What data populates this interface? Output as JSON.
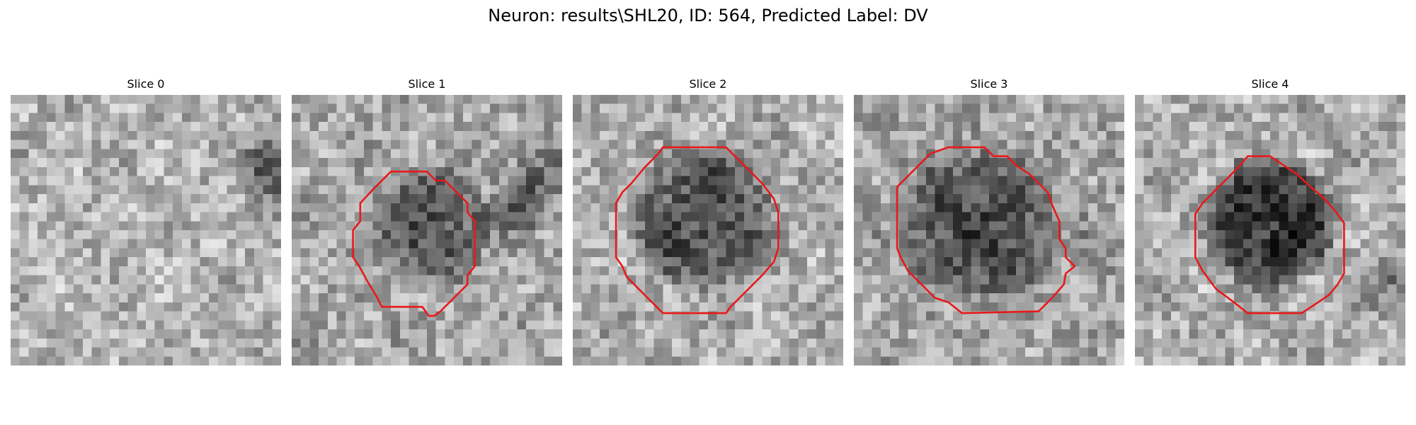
{
  "figure": {
    "title": "Neuron: results\\SHL20, ID: 564, Predicted Label: DV",
    "contour_color": "#e8191a"
  },
  "panels": [
    {
      "title": "Slice 0",
      "has_contour": false
    },
    {
      "title": "Slice 1",
      "has_contour": true
    },
    {
      "title": "Slice 2",
      "has_contour": true
    },
    {
      "title": "Slice 3",
      "has_contour": true
    },
    {
      "title": "Slice 4",
      "has_contour": true
    }
  ]
}
